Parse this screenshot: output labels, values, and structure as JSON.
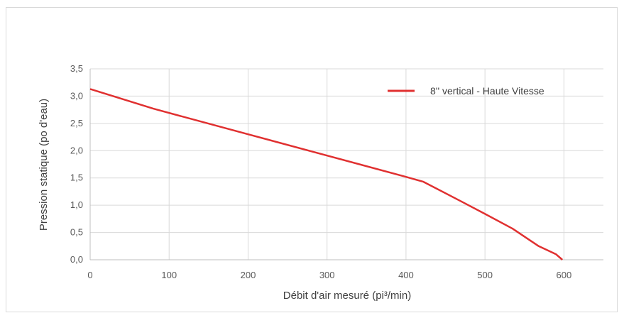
{
  "chart_data": {
    "type": "line",
    "title": "",
    "xlabel": "Débit d'air mesuré (pi³/min)",
    "ylabel": "Pression statique (po d'eau)",
    "xlim": [
      0,
      650
    ],
    "ylim": [
      0,
      3.5
    ],
    "x_ticks": [
      "0",
      "100",
      "200",
      "300",
      "400",
      "500",
      "600"
    ],
    "x_tick_values": [
      0,
      100,
      200,
      300,
      400,
      500,
      600
    ],
    "y_ticks": [
      "0,0",
      "0,5",
      "1,0",
      "1,5",
      "2,0",
      "2,5",
      "3,0",
      "3,5"
    ],
    "y_tick_values": [
      0,
      0.5,
      1.0,
      1.5,
      2.0,
      2.5,
      3.0,
      3.5
    ],
    "grid": true,
    "legend_position": "top-right",
    "series": [
      {
        "name": "8'' vertical - Haute Vitesse",
        "color": "#e03030",
        "x": [
          0,
          80,
          200,
          300,
          400,
          422,
          470,
          500,
          535,
          568,
          590,
          598
        ],
        "y": [
          3.13,
          2.77,
          2.3,
          1.91,
          1.52,
          1.43,
          1.07,
          0.84,
          0.57,
          0.25,
          0.1,
          0.0
        ]
      }
    ]
  }
}
